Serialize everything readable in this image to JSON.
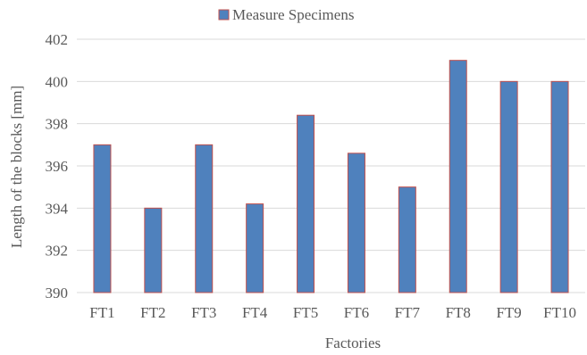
{
  "chart_data": {
    "type": "bar",
    "categories": [
      "FT1",
      "FT2",
      "FT3",
      "FT4",
      "FT5",
      "FT6",
      "FT7",
      "FT8",
      "FT9",
      "FT10"
    ],
    "series": [
      {
        "name": "Measure Specimens",
        "values": [
          397,
          394,
          397,
          394.2,
          398.4,
          396.6,
          395,
          401,
          400,
          400
        ]
      }
    ],
    "xlabel": "Factories",
    "ylabel": "Length of the blocks [mm]",
    "ylim": [
      390,
      402
    ],
    "yticks": [
      390,
      392,
      394,
      396,
      398,
      400,
      402
    ],
    "grid": true,
    "legend_position": "top-center",
    "colors": {
      "bar_fill": "#4f81bd",
      "bar_stroke": "#c0504d",
      "grid": "#d9d9d9",
      "text": "#595959"
    }
  }
}
